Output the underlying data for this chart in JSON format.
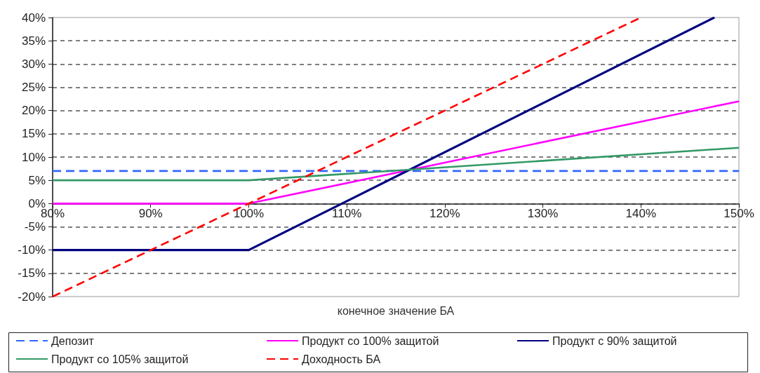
{
  "chart_data": {
    "type": "line",
    "xlabel": "конечное значение БА",
    "xlim": [
      80,
      150
    ],
    "xticks": [
      {
        "value": 80,
        "label": "80%"
      },
      {
        "value": 90,
        "label": "90%"
      },
      {
        "value": 100,
        "label": "100%"
      },
      {
        "value": 110,
        "label": "110%"
      },
      {
        "value": 120,
        "label": "120%"
      },
      {
        "value": 130,
        "label": "130%"
      },
      {
        "value": 140,
        "label": "140%"
      },
      {
        "value": 150,
        "label": "150%"
      }
    ],
    "ylim": [
      -20,
      40
    ],
    "yticks": [
      {
        "value": -20,
        "label": "-20%"
      },
      {
        "value": -15,
        "label": "-15%"
      },
      {
        "value": -10,
        "label": "-10%"
      },
      {
        "value": -5,
        "label": "-5%"
      },
      {
        "value": 0,
        "label": "0%"
      },
      {
        "value": 5,
        "label": "5%"
      },
      {
        "value": 10,
        "label": "10%"
      },
      {
        "value": 15,
        "label": "15%"
      },
      {
        "value": 20,
        "label": "20%"
      },
      {
        "value": 25,
        "label": "25%"
      },
      {
        "value": 30,
        "label": "30%"
      },
      {
        "value": 35,
        "label": "35%"
      },
      {
        "value": 40,
        "label": "40%"
      }
    ],
    "grid": "y",
    "legend": "bottom",
    "marker": "none",
    "series": [
      {
        "name": "Депозит",
        "color": "#3366ff",
        "line_style": "dashed",
        "x": [
          80,
          150
        ],
        "values": [
          7,
          7
        ]
      },
      {
        "name": "Продукт со 100% защитой",
        "color": "#ff00ff",
        "line_style": "solid",
        "x": [
          80,
          100,
          150
        ],
        "values": [
          0,
          0,
          22
        ]
      },
      {
        "name": "Продукт с 90% защитой",
        "color": "#000080",
        "line_style": "solid",
        "x": [
          80,
          100,
          147.5
        ],
        "values": [
          -10,
          -10,
          40
        ]
      },
      {
        "name": "Продукт со 105% защитой",
        "color": "#339966",
        "line_style": "solid",
        "x": [
          80,
          100,
          150
        ],
        "values": [
          5,
          5,
          12
        ]
      },
      {
        "name": "Доходность БА",
        "color": "#ff0000",
        "line_style": "dashed",
        "x": [
          80,
          140
        ],
        "values": [
          -20,
          40
        ]
      }
    ]
  }
}
